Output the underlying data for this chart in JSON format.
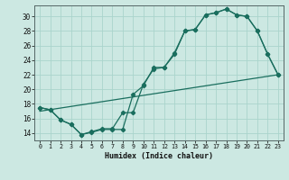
{
  "bg_color": "#cce8e2",
  "grid_color": "#aad4cc",
  "line_color": "#1a6e5e",
  "xlabel": "Humidex (Indice chaleur)",
  "xlim": [
    -0.5,
    23.5
  ],
  "ylim": [
    13.0,
    31.5
  ],
  "xticks": [
    0,
    1,
    2,
    3,
    4,
    5,
    6,
    7,
    8,
    9,
    10,
    11,
    12,
    13,
    14,
    15,
    16,
    17,
    18,
    19,
    20,
    21,
    22,
    23
  ],
  "yticks": [
    14,
    16,
    18,
    20,
    22,
    24,
    26,
    28,
    30
  ],
  "line1_x": [
    0,
    1,
    2,
    3,
    4,
    5,
    6,
    7,
    8,
    9,
    10,
    11,
    12,
    13,
    14,
    15,
    16,
    17,
    18,
    19,
    20,
    21,
    22,
    23
  ],
  "line1_y": [
    17.5,
    17.2,
    15.8,
    15.2,
    13.8,
    14.1,
    14.5,
    14.5,
    14.5,
    19.3,
    20.5,
    23.0,
    23.0,
    24.8,
    28.0,
    28.2,
    30.2,
    30.5,
    31.0,
    30.2,
    30.0,
    28.0,
    24.8,
    22.0
  ],
  "line2_x": [
    0,
    1,
    2,
    3,
    4,
    5,
    6,
    7,
    8,
    9,
    10,
    11,
    12,
    13,
    14,
    15,
    16,
    17,
    18,
    19,
    20,
    21,
    22,
    23
  ],
  "line2_y": [
    17.5,
    17.2,
    15.8,
    15.2,
    13.8,
    14.2,
    14.6,
    14.6,
    16.8,
    16.8,
    20.7,
    22.8,
    23.0,
    25.0,
    28.0,
    28.2,
    30.2,
    30.5,
    31.0,
    30.2,
    30.0,
    28.0,
    24.8,
    22.0
  ],
  "line3_x": [
    0,
    23
  ],
  "line3_y": [
    17.0,
    22.0
  ]
}
